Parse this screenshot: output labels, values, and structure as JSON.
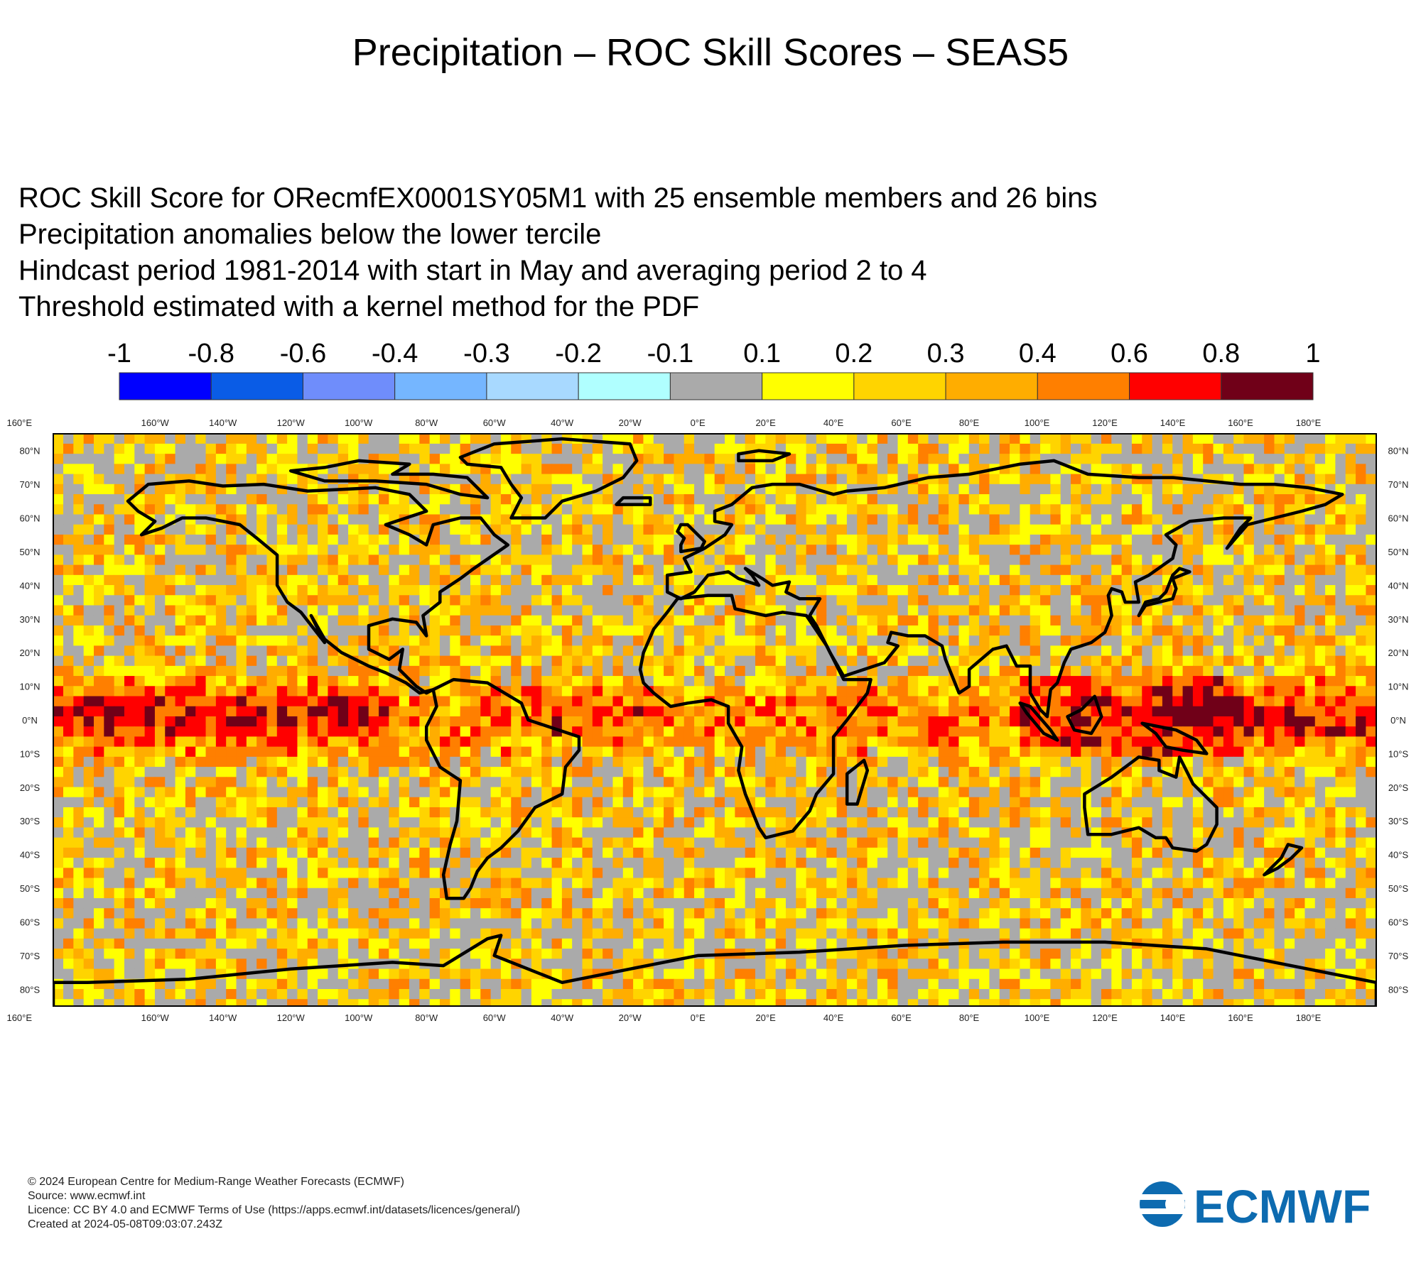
{
  "title": "Precipitation – ROC Skill Scores – SEAS5",
  "subtitle_lines": [
    "ROC Skill Score for ORecmfEX0001SY05M1 with 25 ensemble members and 26 bins",
    "Precipitation anomalies below the lower tercile",
    "Hindcast period 1981-2014 with start in May and averaging period  2 to  4",
    "Threshold estimated with a kernel method for the PDF"
  ],
  "legend": {
    "labels": [
      "-1",
      "-0.8",
      "-0.6",
      "-0.4",
      "-0.3",
      "-0.2",
      "-0.1",
      "0.1",
      "0.2",
      "0.3",
      "0.4",
      "0.6",
      "0.8",
      "1"
    ],
    "colors": [
      "#0000ff",
      "#0a5ce6",
      "#6f8dfb",
      "#75b6ff",
      "#a8d9ff",
      "#b0ffff",
      "#aaaaaa",
      "#ffff00",
      "#ffd400",
      "#ffad00",
      "#ff7f00",
      "#ff0000",
      "#700018"
    ]
  },
  "map": {
    "lon_labels": [
      "160°E",
      "180°E",
      "160°W",
      "140°W",
      "120°W",
      "100°W",
      "80°W",
      "60°W",
      "40°W",
      "20°W",
      "0°E",
      "20°E",
      "40°E",
      "60°E",
      "80°E",
      "100°E",
      "120°E",
      "140°E",
      "160°E"
    ],
    "lat_labels": [
      "80°N",
      "70°N",
      "60°N",
      "50°N",
      "40°N",
      "30°N",
      "20°N",
      "10°N",
      "0°N",
      "10°S",
      "20°S",
      "30°S",
      "40°S",
      "50°S",
      "60°S",
      "70°S",
      "80°S"
    ],
    "lon_range": [
      -190,
      200
    ],
    "lat_range": [
      -85,
      85
    ]
  },
  "footer_lines": [
    "© 2024 European Centre for Medium-Range Weather Forecasts (ECMWF)",
    "Source: www.ecmwf.int",
    "Licence: CC BY 4.0 and ECMWF Terms of Use (https://apps.ecmwf.int/datasets/licences/general/)",
    "Created at 2024-05-08T09:03:07.243Z"
  ],
  "logo": {
    "text": "ECMWF",
    "color": "#0d6bb0"
  }
}
